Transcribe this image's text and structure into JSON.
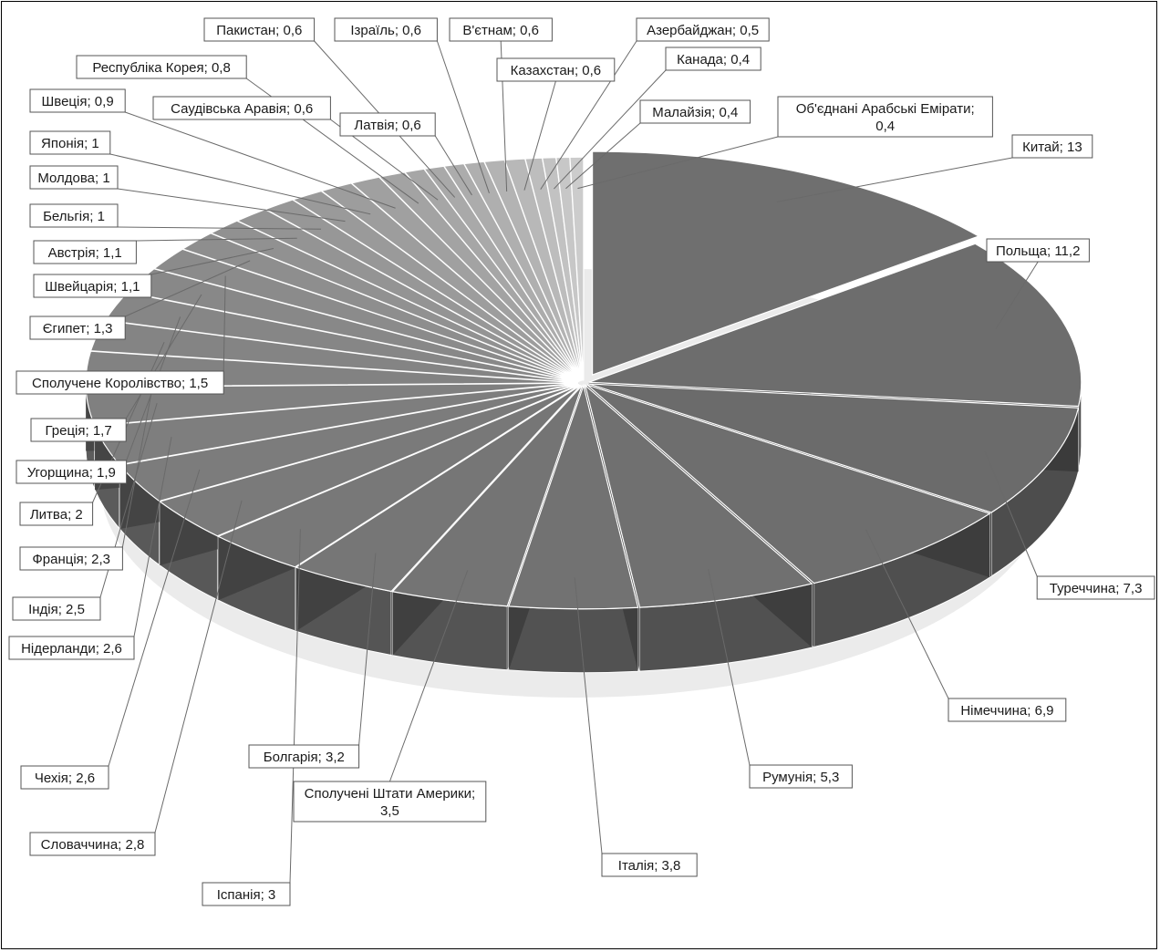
{
  "chart_data": {
    "type": "pie",
    "style": "3d-exploded",
    "title": "",
    "slices": [
      {
        "label": "Китай; 13",
        "name": "Китай",
        "value": 13,
        "color": "#6f6f6f"
      },
      {
        "label": "Польща; 11,2",
        "name": "Польща",
        "value": 11.2,
        "color": "#6d6d6d"
      },
      {
        "label": "Туреччина; 7,3",
        "name": "Туреччина",
        "value": 7.3,
        "color": "#6b6b6b"
      },
      {
        "label": "Німеччина; 6,9",
        "name": "Німеччина",
        "value": 6.9,
        "color": "#6e6e6e"
      },
      {
        "label": "Румунія; 5,3",
        "name": "Румунія",
        "value": 5.3,
        "color": "#707070"
      },
      {
        "label": "Італія; 3,8",
        "name": "Італія",
        "value": 3.8,
        "color": "#727272"
      },
      {
        "label": "Сполучені Штати Америки; 3,5",
        "name": "Сполучені Штати Америки",
        "value": 3.5,
        "color": "#747474"
      },
      {
        "label": "Болгарія; 3,2",
        "name": "Болгарія",
        "value": 3.2,
        "color": "#767676"
      },
      {
        "label": "Іспанія; 3",
        "name": "Іспанія",
        "value": 3,
        "color": "#787878"
      },
      {
        "label": "Словаччина; 2,8",
        "name": "Словаччина",
        "value": 2.8,
        "color": "#7a7a7a"
      },
      {
        "label": "Чехія; 2,6",
        "name": "Чехія",
        "value": 2.6,
        "color": "#7c7c7c"
      },
      {
        "label": "Нідерланди; 2,6",
        "name": "Нідерланди",
        "value": 2.6,
        "color": "#7e7e7e"
      },
      {
        "label": "Індія; 2,5",
        "name": "Індія",
        "value": 2.5,
        "color": "#808080"
      },
      {
        "label": "Франція; 2,3",
        "name": "Франція",
        "value": 2.3,
        "color": "#828282"
      },
      {
        "label": "Литва; 2",
        "name": "Литва",
        "value": 2,
        "color": "#848484"
      },
      {
        "label": "Угорщина; 1,9",
        "name": "Угорщина",
        "value": 1.9,
        "color": "#868686"
      },
      {
        "label": "Греція; 1,7",
        "name": "Греція",
        "value": 1.7,
        "color": "#888888"
      },
      {
        "label": "Сполучене Королівство; 1,5",
        "name": "Сполучене Королівство",
        "value": 1.5,
        "color": "#8b8b8b"
      },
      {
        "label": "Єгипет; 1,3",
        "name": "Єгипет",
        "value": 1.3,
        "color": "#8e8e8e"
      },
      {
        "label": "Швейцарія; 1,1",
        "name": "Швейцарія",
        "value": 1.1,
        "color": "#919191"
      },
      {
        "label": "Австрія; 1,1",
        "name": "Австрія",
        "value": 1.1,
        "color": "#949494"
      },
      {
        "label": "Бельгія; 1",
        "name": "Бельгія",
        "value": 1,
        "color": "#979797"
      },
      {
        "label": "Молдова; 1",
        "name": "Молдова",
        "value": 1,
        "color": "#9a9a9a"
      },
      {
        "label": "Японія; 1",
        "name": "Японія",
        "value": 1,
        "color": "#9d9d9d"
      },
      {
        "label": "Швеція; 0,9",
        "name": "Швеція",
        "value": 0.9,
        "color": "#a0a0a0"
      },
      {
        "label": "Республіка Корея; 0,8",
        "name": "Республіка Корея",
        "value": 0.8,
        "color": "#a3a3a3"
      },
      {
        "label": "Саудівська Аравія; 0,6",
        "name": "Саудівська Аравія",
        "value": 0.6,
        "color": "#a6a6a6"
      },
      {
        "label": "Пакистан; 0,6",
        "name": "Пакистан",
        "value": 0.6,
        "color": "#a9a9a9"
      },
      {
        "label": "Латвія; 0,6",
        "name": "Латвія",
        "value": 0.6,
        "color": "#acacac"
      },
      {
        "label": "Ізраїль; 0,6",
        "name": "Ізраїль",
        "value": 0.6,
        "color": "#afafaf"
      },
      {
        "label": "В'єтнам; 0,6",
        "name": "В'єтнам",
        "value": 0.6,
        "color": "#b3b3b3"
      },
      {
        "label": "Казахстан; 0,6",
        "name": "Казахстан",
        "value": 0.6,
        "color": "#b8b8b8"
      },
      {
        "label": "Азербайджан; 0,5",
        "name": "Азербайджан",
        "value": 0.5,
        "color": "#bdbdbd"
      },
      {
        "label": "Канада; 0,4",
        "name": "Канада",
        "value": 0.4,
        "color": "#c2c2c2"
      },
      {
        "label": "Малайзія; 0,4",
        "name": "Малайзія",
        "value": 0.4,
        "color": "#c7c7c7"
      },
      {
        "label": "Об'єднані Арабські Емірати; 0,4",
        "name": "Об'єднані Арабські Емірати",
        "value": 0.4,
        "color": "#cccccc"
      }
    ],
    "legend": "none",
    "data_labels": "callouts"
  }
}
